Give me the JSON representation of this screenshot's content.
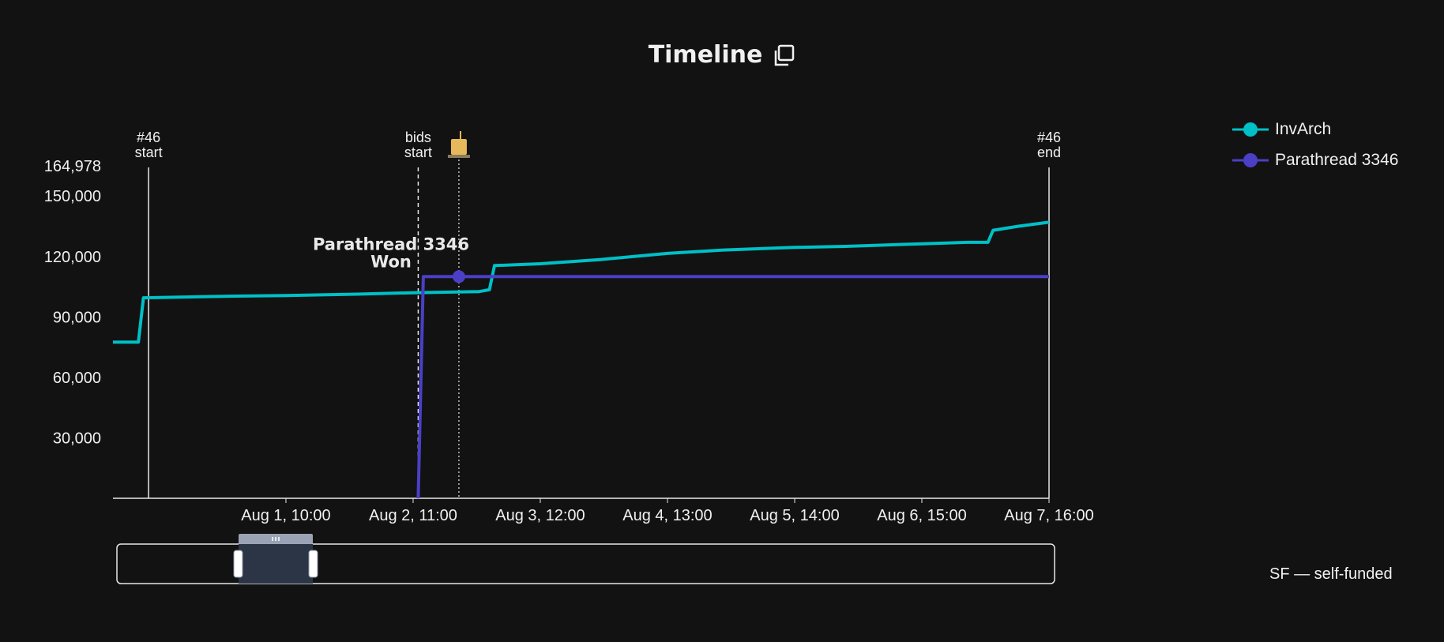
{
  "header": {
    "title": "Timeline",
    "copy_icon": "copy-icon"
  },
  "chart_data": {
    "type": "line",
    "x_labels": [
      "Aug 1, 10:00",
      "Aug 2, 11:00",
      "Aug 3, 12:00",
      "Aug 4, 13:00",
      "Aug 5, 14:00",
      "Aug 6, 15:00",
      "Aug 7, 16:00"
    ],
    "x_range": [
      "Jul 31, 00:00",
      "Aug 7, 16:00"
    ],
    "y_ticks": [
      30000,
      60000,
      90000,
      120000,
      150000
    ],
    "y_ticks_text": [
      "30,000",
      "60,000",
      "90,000",
      "120,000",
      "150,000"
    ],
    "y_max_label": "164,978",
    "ylim": [
      0,
      164978
    ],
    "grid": false,
    "legend_placement": "top-right",
    "series": [
      {
        "name": "InvArch",
        "color": "#00c0c7",
        "points": [
          [
            "Jul 31, 00:00",
            77500
          ],
          [
            "Jul 31, 05:00",
            77500
          ],
          [
            "Jul 31, 06:00",
            99500
          ],
          [
            "Aug 1, 00:00",
            100300
          ],
          [
            "Aug 1, 10:00",
            100600
          ],
          [
            "Aug 2, 00:00",
            101300
          ],
          [
            "Aug 2, 11:00",
            102000
          ],
          [
            "Aug 3, 00:00",
            102600
          ],
          [
            "Aug 3, 02:00",
            103500
          ],
          [
            "Aug 3, 03:00",
            115500
          ],
          [
            "Aug 3, 12:00",
            116400
          ],
          [
            "Aug 4, 00:00",
            118500
          ],
          [
            "Aug 4, 13:00",
            121500
          ],
          [
            "Aug 5, 00:00",
            123200
          ],
          [
            "Aug 5, 14:00",
            124500
          ],
          [
            "Aug 6, 00:00",
            125000
          ],
          [
            "Aug 6, 15:00",
            126300
          ],
          [
            "Aug 7, 00:00",
            127000
          ],
          [
            "Aug 7, 04:00",
            127000
          ],
          [
            "Aug 7, 05:00",
            133000
          ],
          [
            "Aug 7, 10:00",
            135000
          ],
          [
            "Aug 7, 16:00",
            137000
          ]
        ]
      },
      {
        "name": "Parathread 3346",
        "color": "#4b3fc6",
        "points": [
          [
            "Aug 2, 12:00",
            0
          ],
          [
            "Aug 2, 13:00",
            110000
          ],
          [
            "Aug 7, 16:00",
            110000
          ]
        ]
      }
    ],
    "markers": [
      {
        "label_line1": "#46",
        "label_line2": "start",
        "at": "Jul 31, 07:00",
        "style": "solid"
      },
      {
        "label_line1": "bids",
        "label_line2": "start",
        "at": "Aug 2, 12:00",
        "style": "dashed"
      },
      {
        "label_line1": "#46",
        "label_line2": "end",
        "at": "Aug 7, 16:00",
        "style": "solid"
      }
    ],
    "winner_marker": {
      "at": "Aug 2, 20:00",
      "value": 110000,
      "label_line1": "Parathread 3346",
      "label_line2": "Won",
      "icon": "candle-icon"
    }
  },
  "legend": {
    "items": [
      {
        "label": "InvArch"
      },
      {
        "label": "Parathread 3346"
      }
    ]
  },
  "footnote": "SF — self-funded"
}
